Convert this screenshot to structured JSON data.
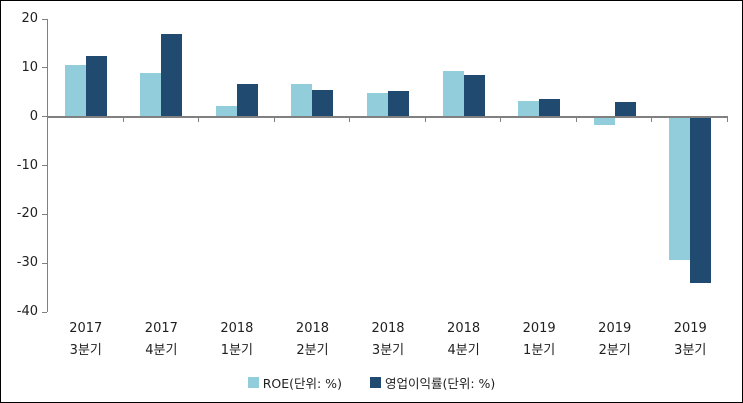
{
  "chart_data": {
    "type": "bar",
    "title": "",
    "categories": [
      "2017\n3분기",
      "2017\n4분기",
      "2018\n1분기",
      "2018\n2분기",
      "2018\n3분기",
      "2018\n4분기",
      "2019\n1분기",
      "2019\n2분기",
      "2019\n3분기"
    ],
    "series": [
      {
        "name": "ROE(단위: %)",
        "color": "#92CDDC",
        "values": [
          10.5,
          8.9,
          2.2,
          6.6,
          4.8,
          9.3,
          3.2,
          -1.8,
          -29.3
        ]
      },
      {
        "name": "영업이익률(단위: %)",
        "color": "#214A70",
        "values": [
          12.5,
          17.0,
          6.7,
          5.4,
          5.2,
          8.6,
          3.6,
          3.0,
          -34.0
        ]
      }
    ],
    "xlabel": "",
    "ylabel": "",
    "ylim": [
      -40,
      20
    ],
    "yticks": [
      20,
      10,
      0,
      -10,
      -20,
      -30,
      -40
    ],
    "legend_position": "bottom",
    "grid": false,
    "axis_color": "#808080",
    "text_color": "#1f1f1f",
    "background_color": "#FFFFFF",
    "border_color": "#000000"
  }
}
